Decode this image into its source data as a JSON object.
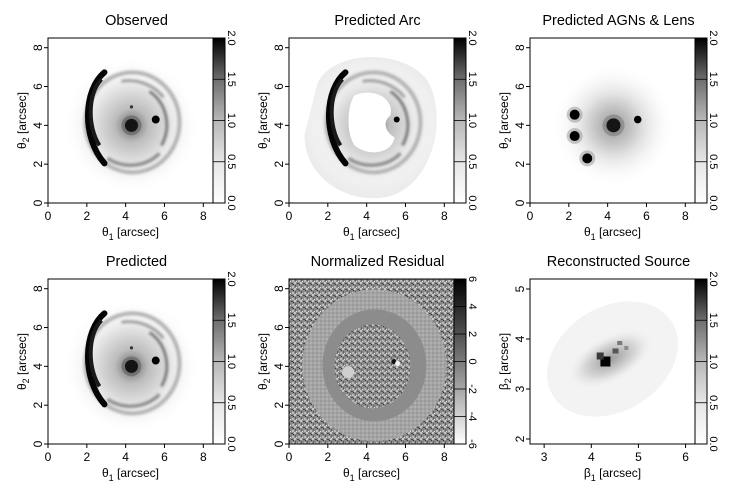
{
  "figure": {
    "panels": [
      {
        "title": "Observed",
        "xlabel_symbol": "θ",
        "xlabel_sub": "1",
        "xlabel_unit": " [arcsec]",
        "ylabel_symbol": "θ",
        "ylabel_sub": "2",
        "ylabel_unit": " [arcsec]",
        "xticks": [
          "0",
          "2",
          "4",
          "6",
          "8"
        ],
        "yticks": [
          "0",
          "2",
          "4",
          "6",
          "8"
        ],
        "cbar_ticks": [
          "0.0",
          "0.5",
          "1.0",
          "1.5",
          "2.0"
        ],
        "xrange": [
          0,
          8.5
        ],
        "yrange": [
          0,
          8.5
        ],
        "cbar_range": [
          0,
          2
        ],
        "image_kind": "observed"
      },
      {
        "title": "Predicted Arc",
        "xlabel_symbol": "θ",
        "xlabel_sub": "1",
        "xlabel_unit": " [arcsec]",
        "ylabel_symbol": "θ",
        "ylabel_sub": "2",
        "ylabel_unit": " [arcsec]",
        "xticks": [
          "0",
          "2",
          "4",
          "6",
          "8"
        ],
        "yticks": [
          "0",
          "2",
          "4",
          "6",
          "8"
        ],
        "cbar_ticks": [
          "0.0",
          "0.5",
          "1.0",
          "1.5",
          "2.0"
        ],
        "xrange": [
          0,
          8.5
        ],
        "yrange": [
          0,
          8.5
        ],
        "cbar_range": [
          0,
          2
        ],
        "image_kind": "arc"
      },
      {
        "title": "Predicted AGNs & Lens",
        "xlabel_symbol": "θ",
        "xlabel_sub": "1",
        "xlabel_unit": " [arcsec]",
        "ylabel_symbol": "θ",
        "ylabel_sub": "2",
        "ylabel_unit": " [arcsec]",
        "xticks": [
          "0",
          "2",
          "4",
          "6",
          "8"
        ],
        "yticks": [
          "0",
          "2",
          "4",
          "6",
          "8"
        ],
        "cbar_ticks": [
          "0.0",
          "0.5",
          "1.0",
          "1.5",
          "2.0"
        ],
        "xrange": [
          0,
          8.5
        ],
        "yrange": [
          0,
          8.5
        ],
        "cbar_range": [
          0,
          2
        ],
        "image_kind": "agn"
      },
      {
        "title": "Predicted",
        "xlabel_symbol": "θ",
        "xlabel_sub": "1",
        "xlabel_unit": " [arcsec]",
        "ylabel_symbol": "θ",
        "ylabel_sub": "2",
        "ylabel_unit": " [arcsec]",
        "xticks": [
          "0",
          "2",
          "4",
          "6",
          "8"
        ],
        "yticks": [
          "0",
          "2",
          "4",
          "6",
          "8"
        ],
        "cbar_ticks": [
          "0.0",
          "0.5",
          "1.0",
          "1.5",
          "2.0"
        ],
        "xrange": [
          0,
          8.5
        ],
        "yrange": [
          0,
          8.5
        ],
        "cbar_range": [
          0,
          2
        ],
        "image_kind": "predicted"
      },
      {
        "title": "Normalized Residual",
        "xlabel_symbol": "θ",
        "xlabel_sub": "1",
        "xlabel_unit": " [arcsec]",
        "ylabel_symbol": "θ",
        "ylabel_sub": "2",
        "ylabel_unit": " [arcsec]",
        "xticks": [
          "0",
          "2",
          "4",
          "6",
          "8"
        ],
        "yticks": [
          "0",
          "2",
          "4",
          "6",
          "8"
        ],
        "cbar_ticks": [
          "-6",
          "-4",
          "-2",
          "0",
          "2",
          "4",
          "6"
        ],
        "xrange": [
          0,
          8.5
        ],
        "yrange": [
          0,
          8.5
        ],
        "cbar_range": [
          -6,
          6
        ],
        "image_kind": "residual"
      },
      {
        "title": "Reconstructed Source",
        "xlabel_symbol": "β",
        "xlabel_sub": "1",
        "xlabel_unit": " [arcsec]",
        "ylabel_symbol": "β",
        "ylabel_sub": "2",
        "ylabel_unit": " [arcsec]",
        "xticks": [
          "3",
          "4",
          "5",
          "6"
        ],
        "yticks": [
          "2",
          "3",
          "4",
          "5"
        ],
        "cbar_ticks": [
          "0.0",
          "0.5",
          "1.0",
          "1.5",
          "2.0"
        ],
        "xrange": [
          2.7,
          6.2
        ],
        "yrange": [
          1.9,
          5.2
        ],
        "cbar_range": [
          0,
          2
        ],
        "image_kind": "source"
      }
    ]
  }
}
